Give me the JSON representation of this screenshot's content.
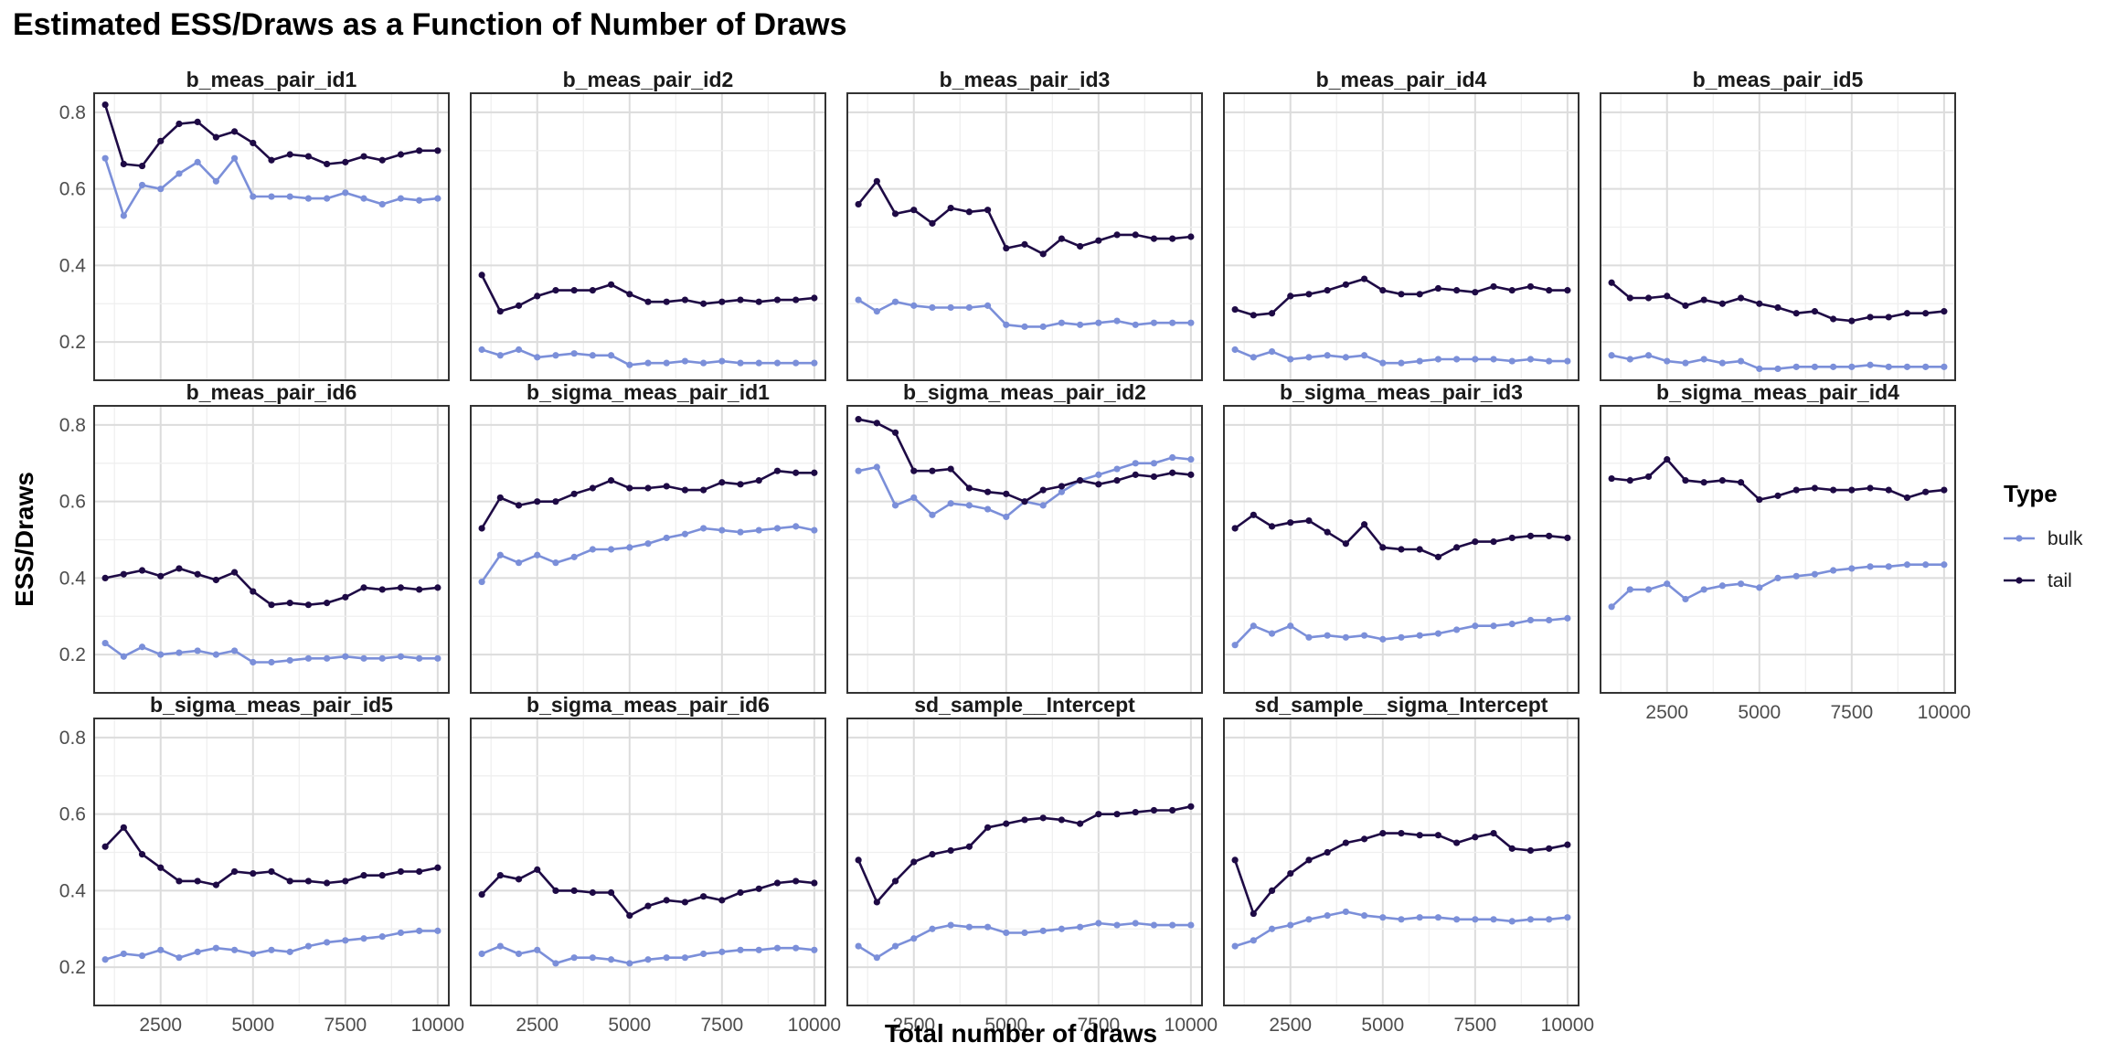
{
  "chart_data": {
    "type": "line",
    "title": "Estimated ESS/Draws as a Function of Number of Draws",
    "xlabel": "Total number of draws",
    "ylabel": "ESS/Draws",
    "xlim": [
      700,
      10300
    ],
    "ylim": [
      0.1,
      0.85
    ],
    "xticks": [
      2500,
      5000,
      7500,
      10000
    ],
    "yticks": [
      0.2,
      0.4,
      0.6,
      0.8
    ],
    "grid": true,
    "legend": {
      "title": "Type",
      "position": "right",
      "entries": [
        "bulk",
        "tail"
      ]
    },
    "colors": {
      "bulk": "#7b8fd9",
      "tail": "#1e0a45"
    },
    "x": [
      1000,
      1500,
      2000,
      2500,
      3000,
      3500,
      4000,
      4500,
      5000,
      5500,
      6000,
      6500,
      7000,
      7500,
      8000,
      8500,
      9000,
      9500,
      10000
    ],
    "panels": [
      {
        "title": "b_meas_pair_id1",
        "series": [
          {
            "name": "bulk",
            "values": [
              0.68,
              0.53,
              0.61,
              0.6,
              0.64,
              0.67,
              0.62,
              0.68,
              0.58,
              0.58,
              0.58,
              0.575,
              0.575,
              0.59,
              0.575,
              0.56,
              0.575,
              0.57,
              0.575
            ]
          },
          {
            "name": "tail",
            "values": [
              0.82,
              0.665,
              0.66,
              0.725,
              0.77,
              0.775,
              0.735,
              0.75,
              0.72,
              0.675,
              0.69,
              0.685,
              0.665,
              0.67,
              0.685,
              0.675,
              0.69,
              0.7,
              0.7
            ]
          }
        ]
      },
      {
        "title": "b_meas_pair_id2",
        "series": [
          {
            "name": "bulk",
            "values": [
              0.18,
              0.165,
              0.18,
              0.16,
              0.165,
              0.17,
              0.165,
              0.165,
              0.14,
              0.145,
              0.145,
              0.15,
              0.145,
              0.15,
              0.145,
              0.145,
              0.145,
              0.145,
              0.145
            ]
          },
          {
            "name": "tail",
            "values": [
              0.375,
              0.28,
              0.295,
              0.32,
              0.335,
              0.335,
              0.335,
              0.35,
              0.325,
              0.305,
              0.305,
              0.31,
              0.3,
              0.305,
              0.31,
              0.305,
              0.31,
              0.31,
              0.315
            ]
          }
        ]
      },
      {
        "title": "b_meas_pair_id3",
        "series": [
          {
            "name": "bulk",
            "values": [
              0.31,
              0.28,
              0.305,
              0.295,
              0.29,
              0.29,
              0.29,
              0.295,
              0.245,
              0.24,
              0.24,
              0.25,
              0.245,
              0.25,
              0.255,
              0.245,
              0.25,
              0.25,
              0.25
            ]
          },
          {
            "name": "tail",
            "values": [
              0.56,
              0.62,
              0.535,
              0.545,
              0.51,
              0.55,
              0.54,
              0.545,
              0.445,
              0.455,
              0.43,
              0.47,
              0.45,
              0.465,
              0.48,
              0.48,
              0.47,
              0.47,
              0.475
            ]
          }
        ]
      },
      {
        "title": "b_meas_pair_id4",
        "series": [
          {
            "name": "bulk",
            "values": [
              0.18,
              0.16,
              0.175,
              0.155,
              0.16,
              0.165,
              0.16,
              0.165,
              0.145,
              0.145,
              0.15,
              0.155,
              0.155,
              0.155,
              0.155,
              0.15,
              0.155,
              0.15,
              0.15
            ]
          },
          {
            "name": "tail",
            "values": [
              0.285,
              0.27,
              0.275,
              0.32,
              0.325,
              0.335,
              0.35,
              0.365,
              0.335,
              0.325,
              0.325,
              0.34,
              0.335,
              0.33,
              0.345,
              0.335,
              0.345,
              0.335,
              0.335
            ]
          }
        ]
      },
      {
        "title": "b_meas_pair_id5",
        "series": [
          {
            "name": "bulk",
            "values": [
              0.165,
              0.155,
              0.165,
              0.15,
              0.145,
              0.155,
              0.145,
              0.15,
              0.13,
              0.13,
              0.135,
              0.135,
              0.135,
              0.135,
              0.14,
              0.135,
              0.135,
              0.135,
              0.135
            ]
          },
          {
            "name": "tail",
            "values": [
              0.355,
              0.315,
              0.315,
              0.32,
              0.295,
              0.31,
              0.3,
              0.315,
              0.3,
              0.29,
              0.275,
              0.28,
              0.26,
              0.255,
              0.265,
              0.265,
              0.275,
              0.275,
              0.28
            ]
          }
        ]
      },
      {
        "title": "b_meas_pair_id6",
        "series": [
          {
            "name": "bulk",
            "values": [
              0.23,
              0.195,
              0.22,
              0.2,
              0.205,
              0.21,
              0.2,
              0.21,
              0.18,
              0.18,
              0.185,
              0.19,
              0.19,
              0.195,
              0.19,
              0.19,
              0.195,
              0.19,
              0.19
            ]
          },
          {
            "name": "tail",
            "values": [
              0.4,
              0.41,
              0.42,
              0.405,
              0.425,
              0.41,
              0.395,
              0.415,
              0.365,
              0.33,
              0.335,
              0.33,
              0.335,
              0.35,
              0.375,
              0.37,
              0.375,
              0.37,
              0.375
            ]
          }
        ]
      },
      {
        "title": "b_sigma_meas_pair_id1",
        "series": [
          {
            "name": "bulk",
            "values": [
              0.39,
              0.46,
              0.44,
              0.46,
              0.44,
              0.455,
              0.475,
              0.475,
              0.48,
              0.49,
              0.505,
              0.515,
              0.53,
              0.525,
              0.52,
              0.525,
              0.53,
              0.535,
              0.525
            ]
          },
          {
            "name": "tail",
            "values": [
              0.53,
              0.61,
              0.59,
              0.6,
              0.6,
              0.62,
              0.635,
              0.655,
              0.635,
              0.635,
              0.64,
              0.63,
              0.63,
              0.65,
              0.645,
              0.655,
              0.68,
              0.675,
              0.675
            ]
          }
        ]
      },
      {
        "title": "b_sigma_meas_pair_id2",
        "series": [
          {
            "name": "bulk",
            "values": [
              0.68,
              0.69,
              0.59,
              0.61,
              0.565,
              0.595,
              0.59,
              0.58,
              0.56,
              0.6,
              0.59,
              0.625,
              0.655,
              0.67,
              0.685,
              0.7,
              0.7,
              0.715,
              0.71
            ]
          },
          {
            "name": "tail",
            "values": [
              0.815,
              0.805,
              0.78,
              0.68,
              0.68,
              0.685,
              0.635,
              0.625,
              0.62,
              0.6,
              0.63,
              0.64,
              0.655,
              0.645,
              0.655,
              0.67,
              0.665,
              0.675,
              0.67
            ]
          }
        ]
      },
      {
        "title": "b_sigma_meas_pair_id3",
        "series": [
          {
            "name": "bulk",
            "values": [
              0.225,
              0.275,
              0.255,
              0.275,
              0.245,
              0.25,
              0.245,
              0.25,
              0.24,
              0.245,
              0.25,
              0.255,
              0.265,
              0.275,
              0.275,
              0.28,
              0.29,
              0.29,
              0.295
            ]
          },
          {
            "name": "tail",
            "values": [
              0.53,
              0.565,
              0.535,
              0.545,
              0.55,
              0.52,
              0.49,
              0.54,
              0.48,
              0.475,
              0.475,
              0.455,
              0.48,
              0.495,
              0.495,
              0.505,
              0.51,
              0.51,
              0.505
            ]
          }
        ]
      },
      {
        "title": "b_sigma_meas_pair_id4",
        "series": [
          {
            "name": "bulk",
            "values": [
              0.325,
              0.37,
              0.37,
              0.385,
              0.345,
              0.37,
              0.38,
              0.385,
              0.375,
              0.4,
              0.405,
              0.41,
              0.42,
              0.425,
              0.43,
              0.43,
              0.435,
              0.435,
              0.435
            ]
          },
          {
            "name": "tail",
            "values": [
              0.66,
              0.655,
              0.665,
              0.71,
              0.655,
              0.65,
              0.655,
              0.65,
              0.605,
              0.615,
              0.63,
              0.635,
              0.63,
              0.63,
              0.635,
              0.63,
              0.61,
              0.625,
              0.63
            ]
          }
        ]
      },
      {
        "title": "b_sigma_meas_pair_id5",
        "series": [
          {
            "name": "bulk",
            "values": [
              0.22,
              0.235,
              0.23,
              0.245,
              0.225,
              0.24,
              0.25,
              0.245,
              0.235,
              0.245,
              0.24,
              0.255,
              0.265,
              0.27,
              0.275,
              0.28,
              0.29,
              0.295,
              0.295
            ]
          },
          {
            "name": "tail",
            "values": [
              0.515,
              0.565,
              0.495,
              0.46,
              0.425,
              0.425,
              0.415,
              0.45,
              0.445,
              0.45,
              0.425,
              0.425,
              0.42,
              0.425,
              0.44,
              0.44,
              0.45,
              0.45,
              0.46
            ]
          }
        ]
      },
      {
        "title": "b_sigma_meas_pair_id6",
        "series": [
          {
            "name": "bulk",
            "values": [
              0.235,
              0.255,
              0.235,
              0.245,
              0.21,
              0.225,
              0.225,
              0.22,
              0.21,
              0.22,
              0.225,
              0.225,
              0.235,
              0.24,
              0.245,
              0.245,
              0.25,
              0.25,
              0.245
            ]
          },
          {
            "name": "tail",
            "values": [
              0.39,
              0.44,
              0.43,
              0.455,
              0.4,
              0.4,
              0.395,
              0.395,
              0.335,
              0.36,
              0.375,
              0.37,
              0.385,
              0.375,
              0.395,
              0.405,
              0.42,
              0.425,
              0.42
            ]
          }
        ]
      },
      {
        "title": "sd_sample__Intercept",
        "series": [
          {
            "name": "bulk",
            "values": [
              0.255,
              0.225,
              0.255,
              0.275,
              0.3,
              0.31,
              0.305,
              0.305,
              0.29,
              0.29,
              0.295,
              0.3,
              0.305,
              0.315,
              0.31,
              0.315,
              0.31,
              0.31,
              0.31
            ]
          },
          {
            "name": "tail",
            "values": [
              0.48,
              0.37,
              0.425,
              0.475,
              0.495,
              0.505,
              0.515,
              0.565,
              0.575,
              0.585,
              0.59,
              0.585,
              0.575,
              0.6,
              0.6,
              0.605,
              0.61,
              0.61,
              0.62
            ]
          }
        ]
      },
      {
        "title": "sd_sample__sigma_Intercept",
        "series": [
          {
            "name": "bulk",
            "values": [
              0.255,
              0.27,
              0.3,
              0.31,
              0.325,
              0.335,
              0.345,
              0.335,
              0.33,
              0.325,
              0.33,
              0.33,
              0.325,
              0.325,
              0.325,
              0.32,
              0.325,
              0.325,
              0.33
            ]
          },
          {
            "name": "tail",
            "values": [
              0.48,
              0.34,
              0.4,
              0.445,
              0.48,
              0.5,
              0.525,
              0.535,
              0.55,
              0.55,
              0.545,
              0.545,
              0.525,
              0.54,
              0.55,
              0.51,
              0.505,
              0.51,
              0.52
            ]
          }
        ]
      }
    ]
  }
}
